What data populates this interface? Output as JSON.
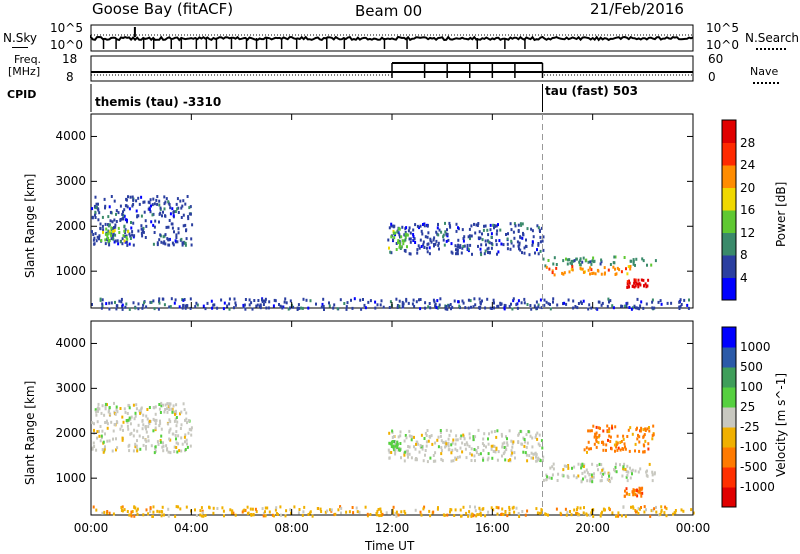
{
  "header": {
    "station": "Goose Bay (fitACF)",
    "beam": "Beam 00",
    "date": "21/Feb/2016"
  },
  "sky_panel": {
    "left_label": "N.Sky",
    "right_label": "N.Search",
    "left_ticks": [
      "10^5",
      "10^0"
    ],
    "right_ticks": [
      "10^5",
      "10^0"
    ]
  },
  "freq_panel": {
    "left_label_1": "Freq.",
    "left_label_2": "[MHz]",
    "right_label": "Nave",
    "left_ticks": [
      "18",
      "8"
    ],
    "right_ticks": [
      "60",
      "0"
    ],
    "nave_high_start": 12,
    "nave_high_end": 18
  },
  "cpid": {
    "label": "CPID",
    "segment_1": "themis (tau) -3310",
    "segment_2": "tau (fast) 503",
    "switch_hour": 18
  },
  "chart_data": [
    {
      "type": "heatmap",
      "title": "Power",
      "ylabel": "Slant Range [km]",
      "yticks": [
        "1000",
        "2000",
        "3000",
        "4000"
      ],
      "ylim": [
        180,
        4500
      ],
      "xlim": [
        0,
        24
      ],
      "colorbar_label": "Power [dB]",
      "colorbar_ticks": [
        "4",
        "8",
        "12",
        "16",
        "20",
        "24",
        "28"
      ],
      "colors": [
        "#0000ff",
        "#2b3fa0",
        "#3a8a6a",
        "#5fc832",
        "#f0d800",
        "#ff8c00",
        "#ff2a00",
        "#e00000"
      ],
      "regions": [
        {
          "x": [
            0.0,
            4.0
          ],
          "y": [
            1600,
            2700
          ],
          "level": 1
        },
        {
          "x": [
            0.3,
            1.5
          ],
          "y": [
            1700,
            2000
          ],
          "level": 3
        },
        {
          "x": [
            11.8,
            18.0
          ],
          "y": [
            1400,
            2100
          ],
          "level": 1
        },
        {
          "x": [
            11.8,
            12.6
          ],
          "y": [
            1500,
            2000
          ],
          "level": 3
        },
        {
          "x": [
            18.0,
            22.5
          ],
          "y": [
            1150,
            1350
          ],
          "level": 2
        },
        {
          "x": [
            18.0,
            21.5
          ],
          "y": [
            950,
            1150
          ],
          "level": 5
        },
        {
          "x": [
            21.3,
            22.2
          ],
          "y": [
            650,
            850
          ],
          "level": 7
        },
        {
          "x": [
            0.0,
            24.0
          ],
          "y": [
            180,
            420
          ],
          "level": 1
        }
      ]
    },
    {
      "type": "heatmap",
      "title": "Velocity",
      "ylabel": "Slant Range [km]",
      "yticks": [
        "1000",
        "2000",
        "3000",
        "4000"
      ],
      "ylim": [
        180,
        4500
      ],
      "xlim": [
        0,
        24
      ],
      "colorbar_label": "Velocity [m s^-1]",
      "colorbar_ticks": [
        "1000",
        "500",
        "100",
        "25",
        "-25",
        "-100",
        "-500",
        "-1000"
      ],
      "colors": [
        "#0000ff",
        "#2b5aa8",
        "#3f9e5a",
        "#56d040",
        "#c8c8c0",
        "#f0b000",
        "#ff7a00",
        "#ff3000",
        "#e00000"
      ],
      "regions": [
        {
          "x": [
            0.0,
            4.0
          ],
          "y": [
            1600,
            2700
          ],
          "level": 4
        },
        {
          "x": [
            11.8,
            18.0
          ],
          "y": [
            1400,
            2100
          ],
          "level": 4
        },
        {
          "x": [
            11.9,
            12.3
          ],
          "y": [
            1650,
            1850
          ],
          "level": 3
        },
        {
          "x": [
            18.0,
            22.5
          ],
          "y": [
            950,
            1350
          ],
          "level": 4
        },
        {
          "x": [
            19.6,
            22.4
          ],
          "y": [
            1600,
            2200
          ],
          "level": 6
        },
        {
          "x": [
            21.2,
            22.0
          ],
          "y": [
            620,
            820
          ],
          "level": 6
        },
        {
          "x": [
            0.0,
            24.0
          ],
          "y": [
            180,
            400
          ],
          "level": 5
        }
      ]
    }
  ],
  "xaxis": {
    "xlabel": "Time UT",
    "ticks": [
      "00:00",
      "04:00",
      "08:00",
      "12:00",
      "16:00",
      "20:00",
      "00:00"
    ],
    "tick_hours": [
      0,
      4,
      8,
      12,
      16,
      20,
      24
    ]
  }
}
